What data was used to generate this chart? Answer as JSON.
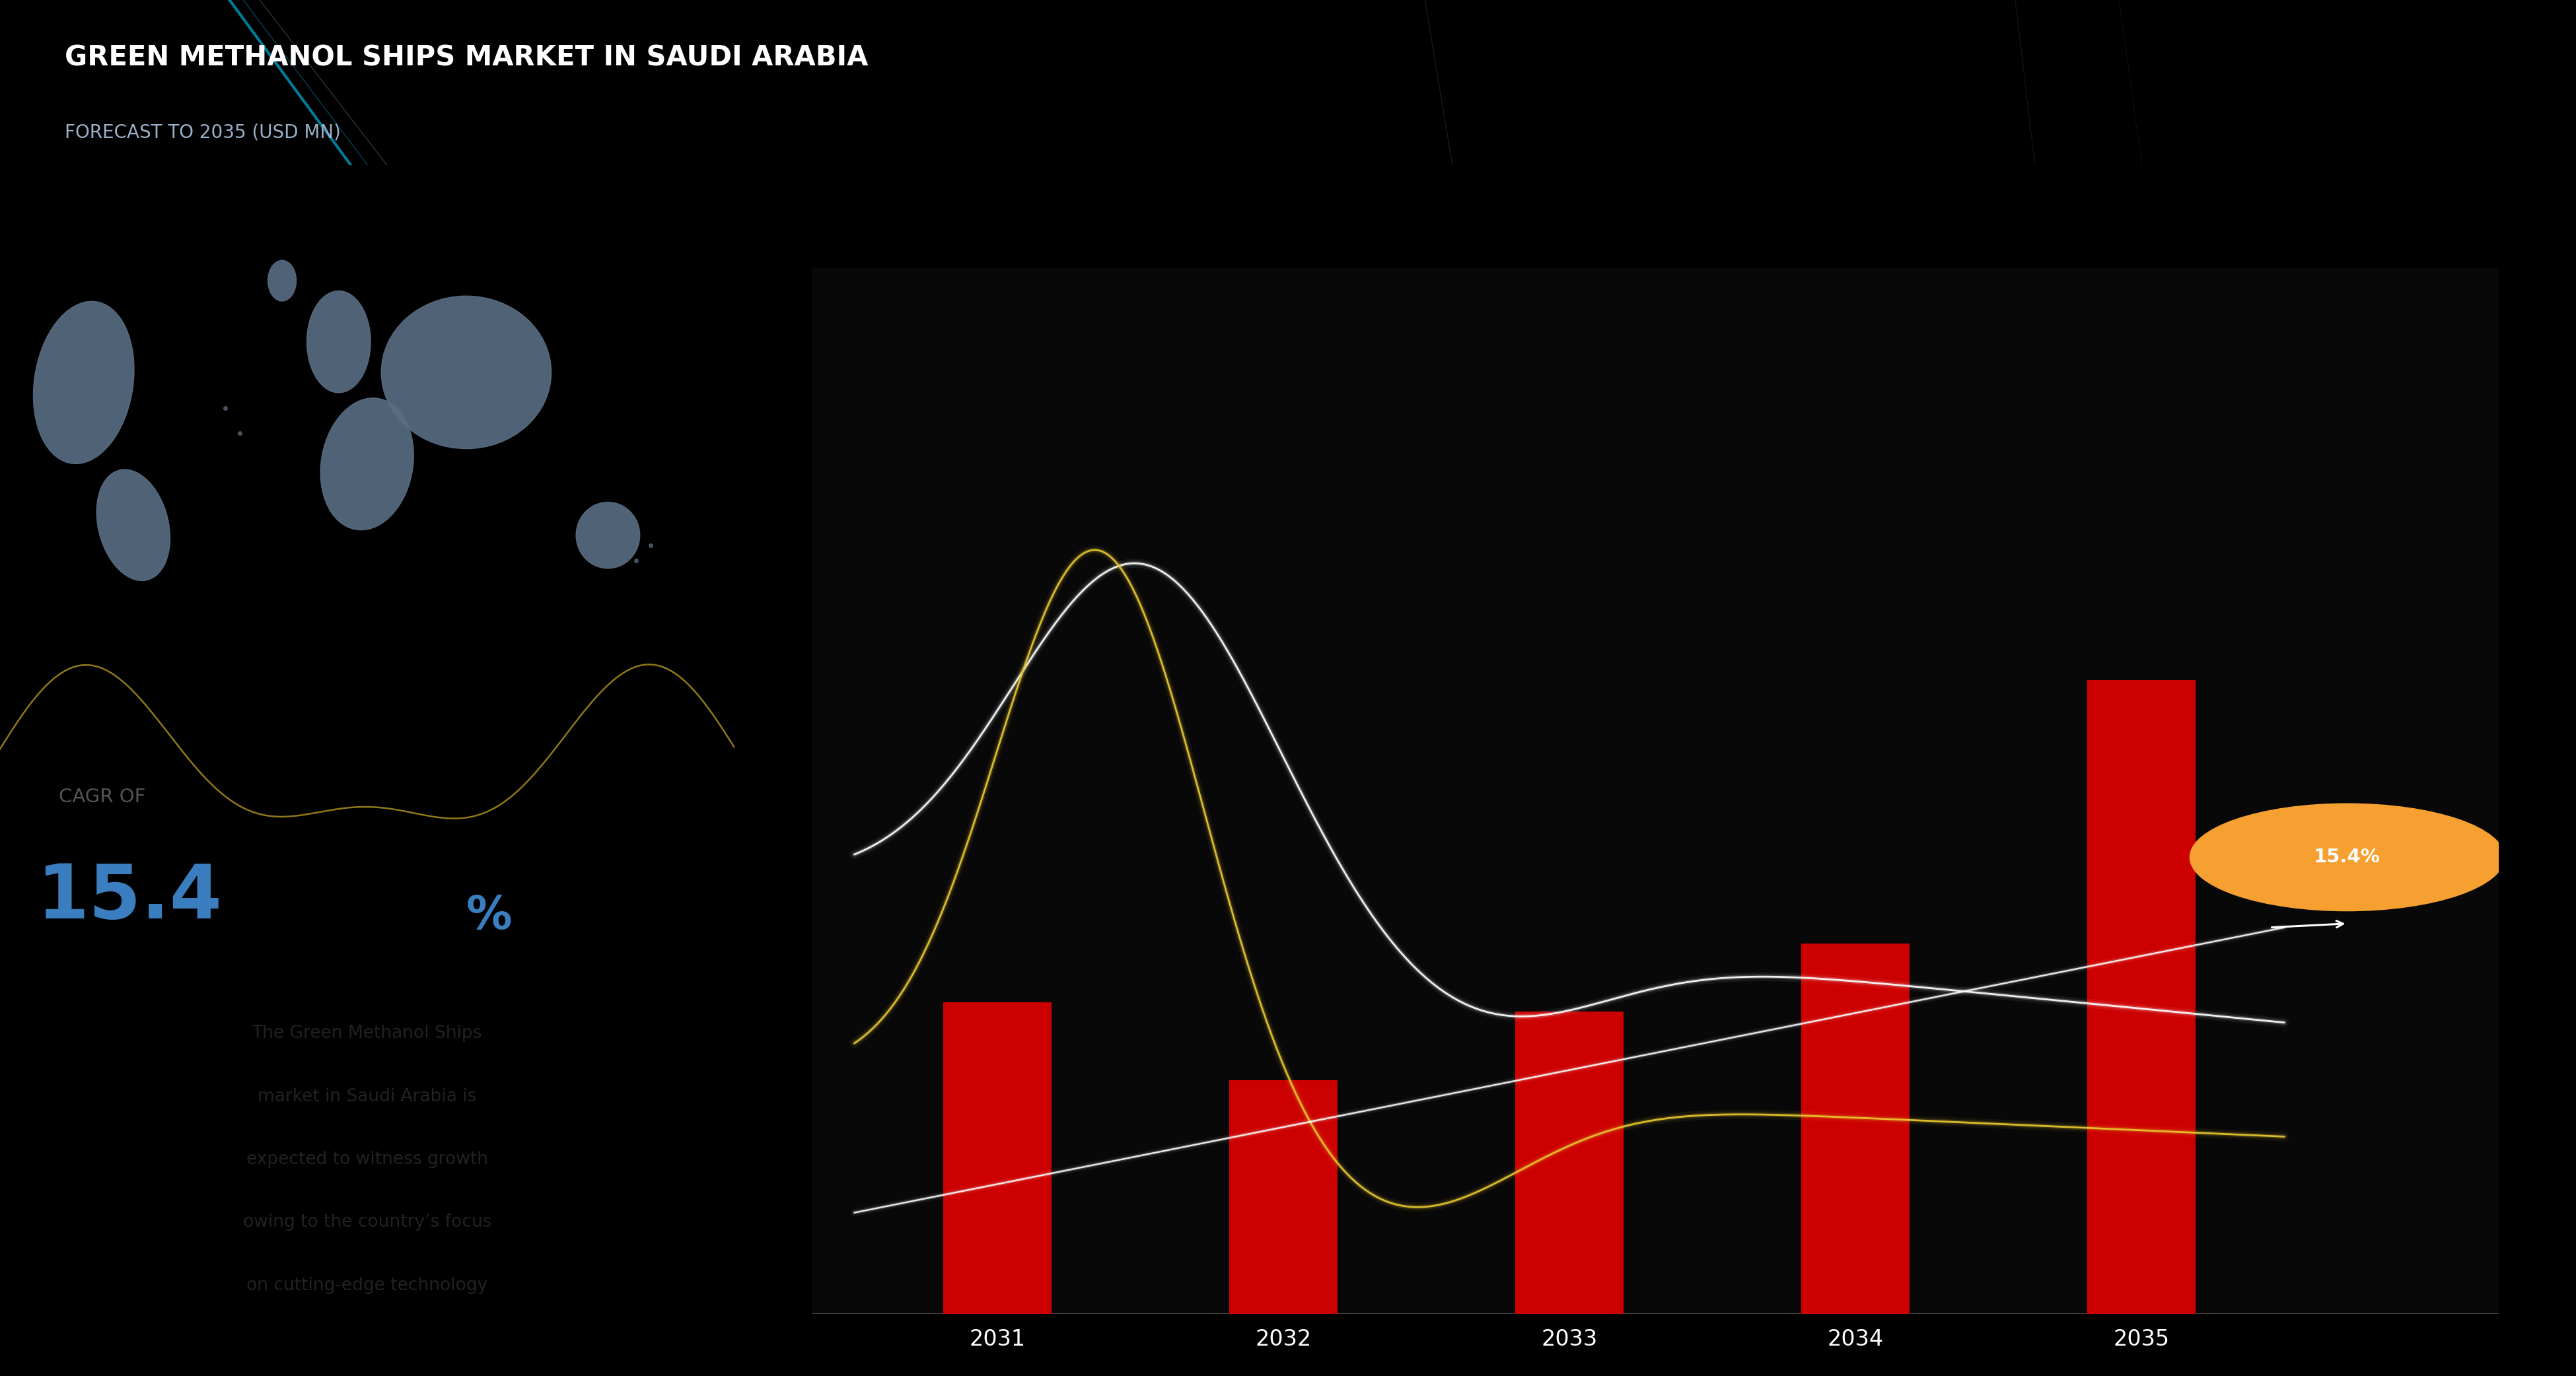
{
  "title_main": "GREEN METHANOL SHIPS MARKET IN SAUDI ARABIA",
  "title_sub": "FORECAST TO 2035 (USD MN)",
  "cagr_label": "CAGR OF",
  "cagr_value": "15.4",
  "cagr_percent": "%",
  "desc_lines": [
    "The Green Methanol Ships",
    "market in Saudi Arabia is",
    "expected to witness growth",
    "owing to the country’s focus",
    "on cutting-edge technology"
  ],
  "years": [
    "2031",
    "2032",
    "2033",
    "2034",
    "2035"
  ],
  "bar_values": [
    3.2,
    2.4,
    3.1,
    3.8,
    6.5
  ],
  "bar_color": "#cc0000",
  "header_bg": "#0c1f33",
  "left_panel_bg": "#eaecf0",
  "chart_bg": "#080808",
  "cagr_color": "#3a7ebf",
  "annotation_value": "15.4%",
  "annotation_color": "#f5a030",
  "map_color": "#5a6e84",
  "map_edge": "#c8d0da",
  "continents": [
    [
      0.1,
      0.6,
      0.14,
      0.32,
      -5
    ],
    [
      0.17,
      0.32,
      0.1,
      0.22,
      8
    ],
    [
      0.46,
      0.68,
      0.09,
      0.2,
      0
    ],
    [
      0.5,
      0.44,
      0.13,
      0.26,
      -5
    ],
    [
      0.64,
      0.62,
      0.24,
      0.3,
      0
    ],
    [
      0.84,
      0.3,
      0.09,
      0.13,
      0
    ],
    [
      0.38,
      0.8,
      0.04,
      0.08,
      0
    ]
  ]
}
